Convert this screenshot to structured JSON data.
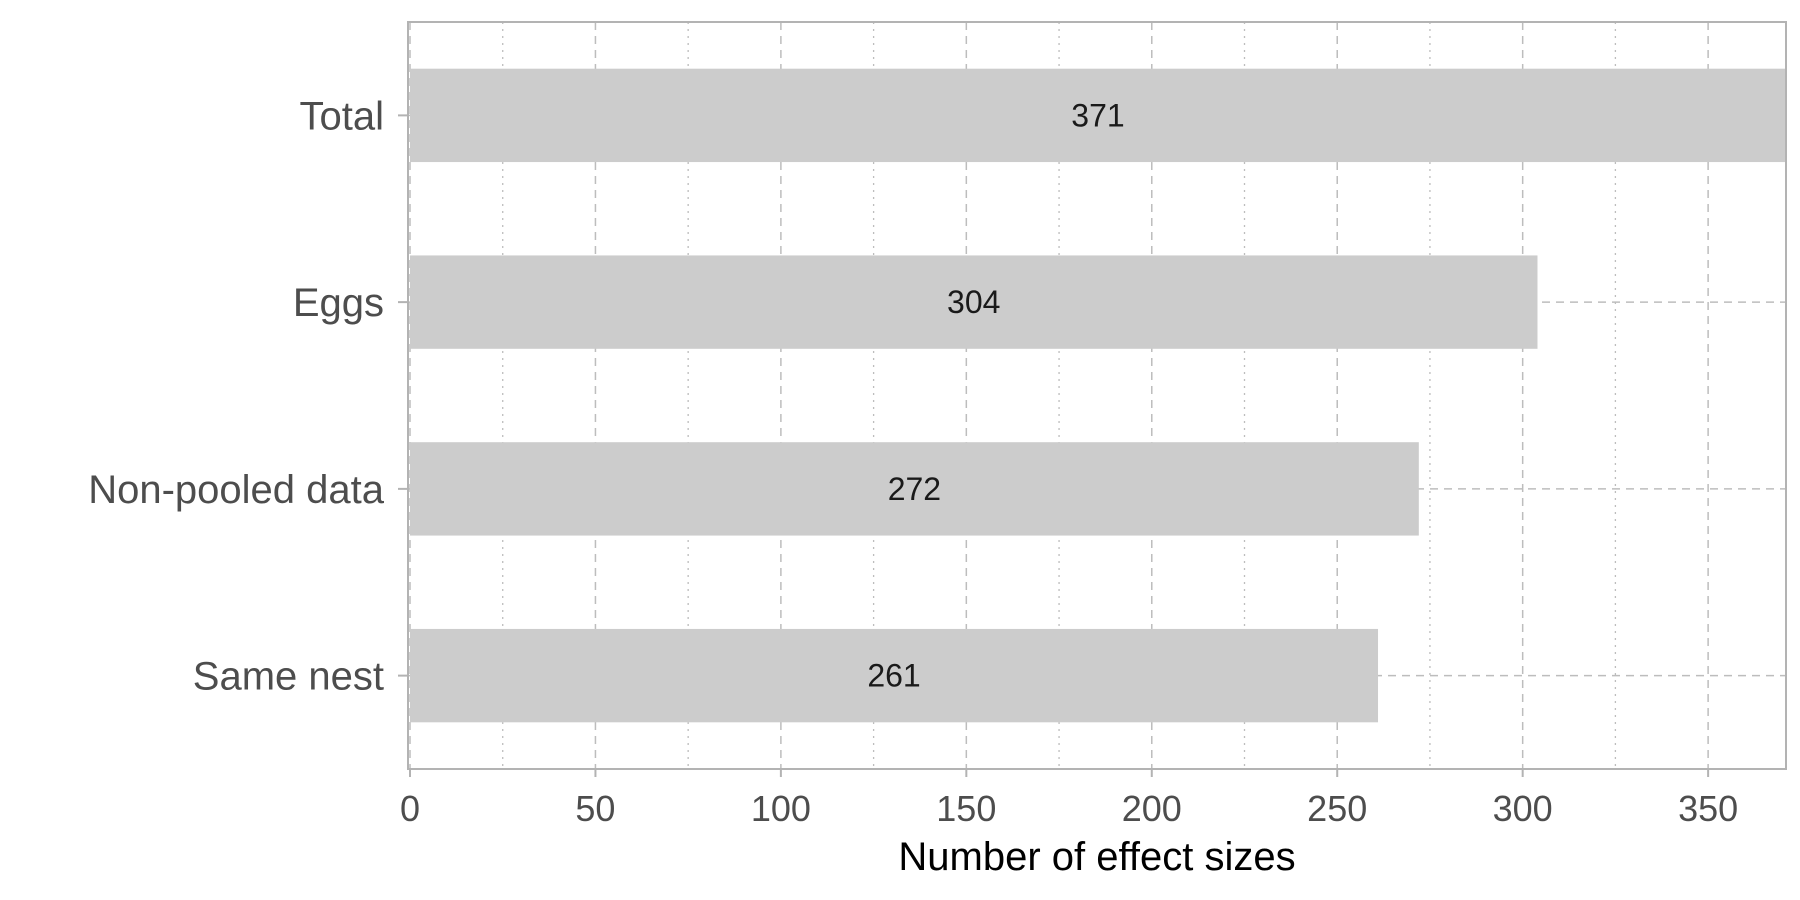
{
  "chart_data": {
    "type": "bar",
    "orientation": "horizontal",
    "categories": [
      "Total",
      "Eggs",
      "Non-pooled data",
      "Same nest"
    ],
    "values": [
      371,
      304,
      272,
      261
    ],
    "data_labels": [
      "371",
      "304",
      "272",
      "261"
    ],
    "title": "",
    "xlabel": "Number of effect sizes",
    "ylabel": "",
    "xlim": [
      0,
      371
    ],
    "x_ticks": [
      0,
      50,
      100,
      150,
      200,
      250,
      300,
      350
    ],
    "x_tick_labels": [
      "0",
      "50",
      "100",
      "150",
      "200",
      "250",
      "300",
      "350"
    ],
    "grid": true,
    "bar_color": "#cccccc",
    "grid_color": "#bdbdbd",
    "panel_border_color": "#b3b3b3"
  }
}
